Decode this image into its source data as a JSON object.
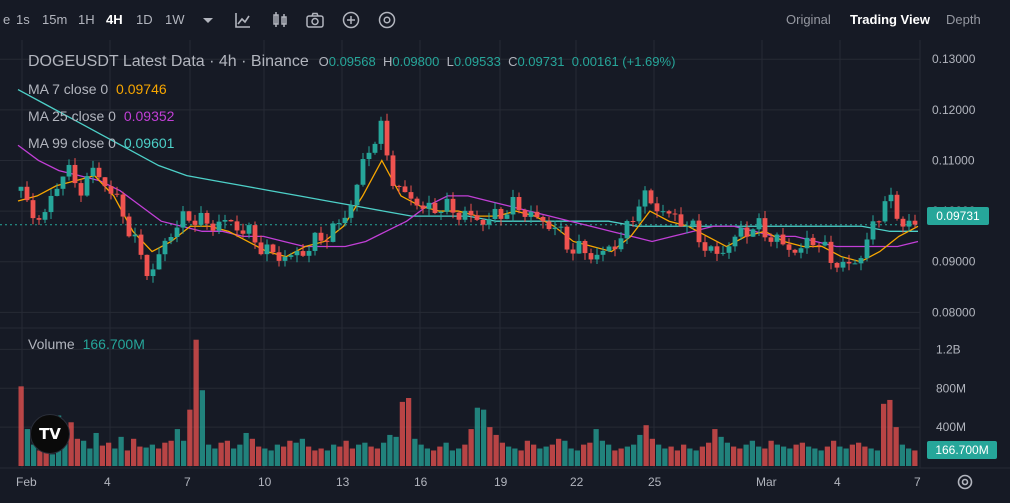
{
  "toolbar": {
    "intervals": [
      "e",
      "1s",
      "15m",
      "1H",
      "4H",
      "1D",
      "1W"
    ],
    "active_interval": "4H",
    "views": [
      "Original",
      "Trading View",
      "Depth"
    ],
    "active_view": "Trading View"
  },
  "legend": {
    "symbol": "DOGEUSDT Latest Data · 4h · Binance",
    "o_label": "O",
    "o": "0.09568",
    "h_label": "H",
    "h": "0.09800",
    "l_label": "L",
    "l": "0.09533",
    "c_label": "C",
    "c": "0.09731",
    "change": "0.00161 (+1.69%)",
    "ma7_label": "MA 7 close 0",
    "ma7": "0.09746",
    "ma25_label": "MA 25 close 0",
    "ma25": "0.09352",
    "ma99_label": "MA 99 close 0",
    "ma99": "0.09601",
    "volume_label": "Volume",
    "volume": "166.700M"
  },
  "price_axis": {
    "labels": [
      "0.13000",
      "0.12000",
      "0.11000",
      "0.10000",
      "0.09000",
      "0.08000"
    ],
    "last_price": "0.09731"
  },
  "volume_axis": {
    "labels": [
      "1.2B",
      "800M",
      "400M"
    ],
    "last_volume": "166.700M"
  },
  "time_axis": {
    "labels": [
      "Feb",
      "4",
      "7",
      "10",
      "13",
      "16",
      "19",
      "22",
      "25",
      "Mar",
      "4",
      "7"
    ]
  },
  "colors": {
    "up": "#26a69a",
    "down": "#ef5350",
    "ma7": "#f7a600",
    "ma25": "#c13fd6",
    "ma99": "#4dd0c8",
    "bg": "#161a25",
    "grid": "#262a35"
  },
  "logo_text": "TV",
  "chart_data": {
    "type": "candlestick",
    "title": "DOGEUSDT Latest Data · 4h · Binance",
    "ylim": [
      0.0775,
      0.133
    ],
    "volume_ylim": [
      0,
      1400
    ],
    "x_range_days": [
      "Feb 1",
      "Mar 7"
    ],
    "price_path": [
      [
        0.104,
        0.098,
        0.101,
        0.109,
        0.104,
        0.108,
        0.105,
        0.1,
        0.093,
        0.087,
        0.094,
        0.098,
        0.099,
        0.097,
        0.098,
        0.097,
        0.095,
        0.092,
        0.091,
        0.091,
        0.093,
        0.095,
        0.097,
        0.102,
        0.112,
        0.116,
        0.104,
        0.103,
        0.1,
        0.101,
        0.1,
        0.099,
        0.098,
        0.099,
        0.101,
        0.1,
        0.098,
        0.097,
        0.093,
        0.092,
        0.091,
        0.093,
        0.096,
        0.103,
        0.101,
        0.099,
        0.098,
        0.095,
        0.091,
        0.093,
        0.096,
        0.097,
        0.095,
        0.093,
        0.092,
        0.095,
        0.091,
        0.089,
        0.09,
        0.096,
        0.103,
        0.098,
        0.097
      ]
    ],
    "ma7_path": [
      0.102,
      0.103,
      0.105,
      0.106,
      0.107,
      0.103,
      0.096,
      0.092,
      0.094,
      0.097,
      0.097,
      0.096,
      0.094,
      0.092,
      0.091,
      0.093,
      0.094,
      0.097,
      0.103,
      0.11,
      0.103,
      0.101,
      0.1,
      0.1,
      0.099,
      0.099,
      0.1,
      0.099,
      0.097,
      0.094,
      0.093,
      0.092,
      0.095,
      0.1,
      0.098,
      0.097,
      0.095,
      0.093,
      0.095,
      0.096,
      0.094,
      0.093,
      0.093,
      0.091,
      0.09,
      0.092,
      0.095,
      0.097
    ],
    "ma25_path": [
      0.113,
      0.11,
      0.108,
      0.107,
      0.106,
      0.104,
      0.101,
      0.098,
      0.097,
      0.096,
      0.096,
      0.095,
      0.095,
      0.094,
      0.093,
      0.093,
      0.093,
      0.094,
      0.096,
      0.098,
      0.101,
      0.103,
      0.103,
      0.102,
      0.101,
      0.1,
      0.099,
      0.098,
      0.097,
      0.096,
      0.095,
      0.094,
      0.095,
      0.096,
      0.097,
      0.097,
      0.096,
      0.095,
      0.095,
      0.094,
      0.093,
      0.093,
      0.093,
      0.093,
      0.094
    ],
    "ma99_path": [
      0.124,
      0.121,
      0.118,
      0.115,
      0.112,
      0.109,
      0.107,
      0.106,
      0.105,
      0.104,
      0.103,
      0.102,
      0.101,
      0.1,
      0.099,
      0.099,
      0.099,
      0.098,
      0.098,
      0.098,
      0.098,
      0.098,
      0.097,
      0.097,
      0.097,
      0.097,
      0.097,
      0.097,
      0.097,
      0.097,
      0.097,
      0.096,
      0.096
    ],
    "volume_values_M": [
      820,
      380,
      220,
      160,
      280,
      120,
      520,
      330,
      450,
      280,
      260,
      180,
      340,
      210,
      240,
      180,
      300,
      160,
      280,
      200,
      190,
      220,
      180,
      240,
      260,
      380,
      260,
      580,
      1300,
      780,
      220,
      180,
      240,
      260,
      180,
      220,
      340,
      280,
      200,
      180,
      160,
      220,
      200,
      260,
      240,
      280,
      200,
      160,
      180,
      160,
      220,
      200,
      260,
      180,
      220,
      240,
      200,
      180,
      240,
      320,
      300,
      660,
      700,
      280,
      220,
      180,
      160,
      200,
      240,
      160,
      180,
      220,
      380,
      600,
      580,
      400,
      320,
      240,
      200,
      180,
      160,
      260,
      220,
      180,
      200,
      220,
      280,
      260,
      180,
      160,
      220,
      240,
      380,
      260,
      220,
      160,
      180,
      200,
      220,
      320,
      420,
      280,
      220,
      180,
      200,
      160,
      220,
      180,
      160,
      200,
      240,
      380,
      300,
      240,
      200,
      180,
      220,
      260,
      200,
      180,
      260,
      220,
      200,
      180,
      220,
      240,
      200,
      180,
      160,
      200,
      260,
      200,
      180,
      220,
      240,
      200,
      180,
      160,
      640,
      680,
      400,
      220,
      180,
      160
    ],
    "last_price": 0.09731,
    "last_volume_M": 166.7
  }
}
